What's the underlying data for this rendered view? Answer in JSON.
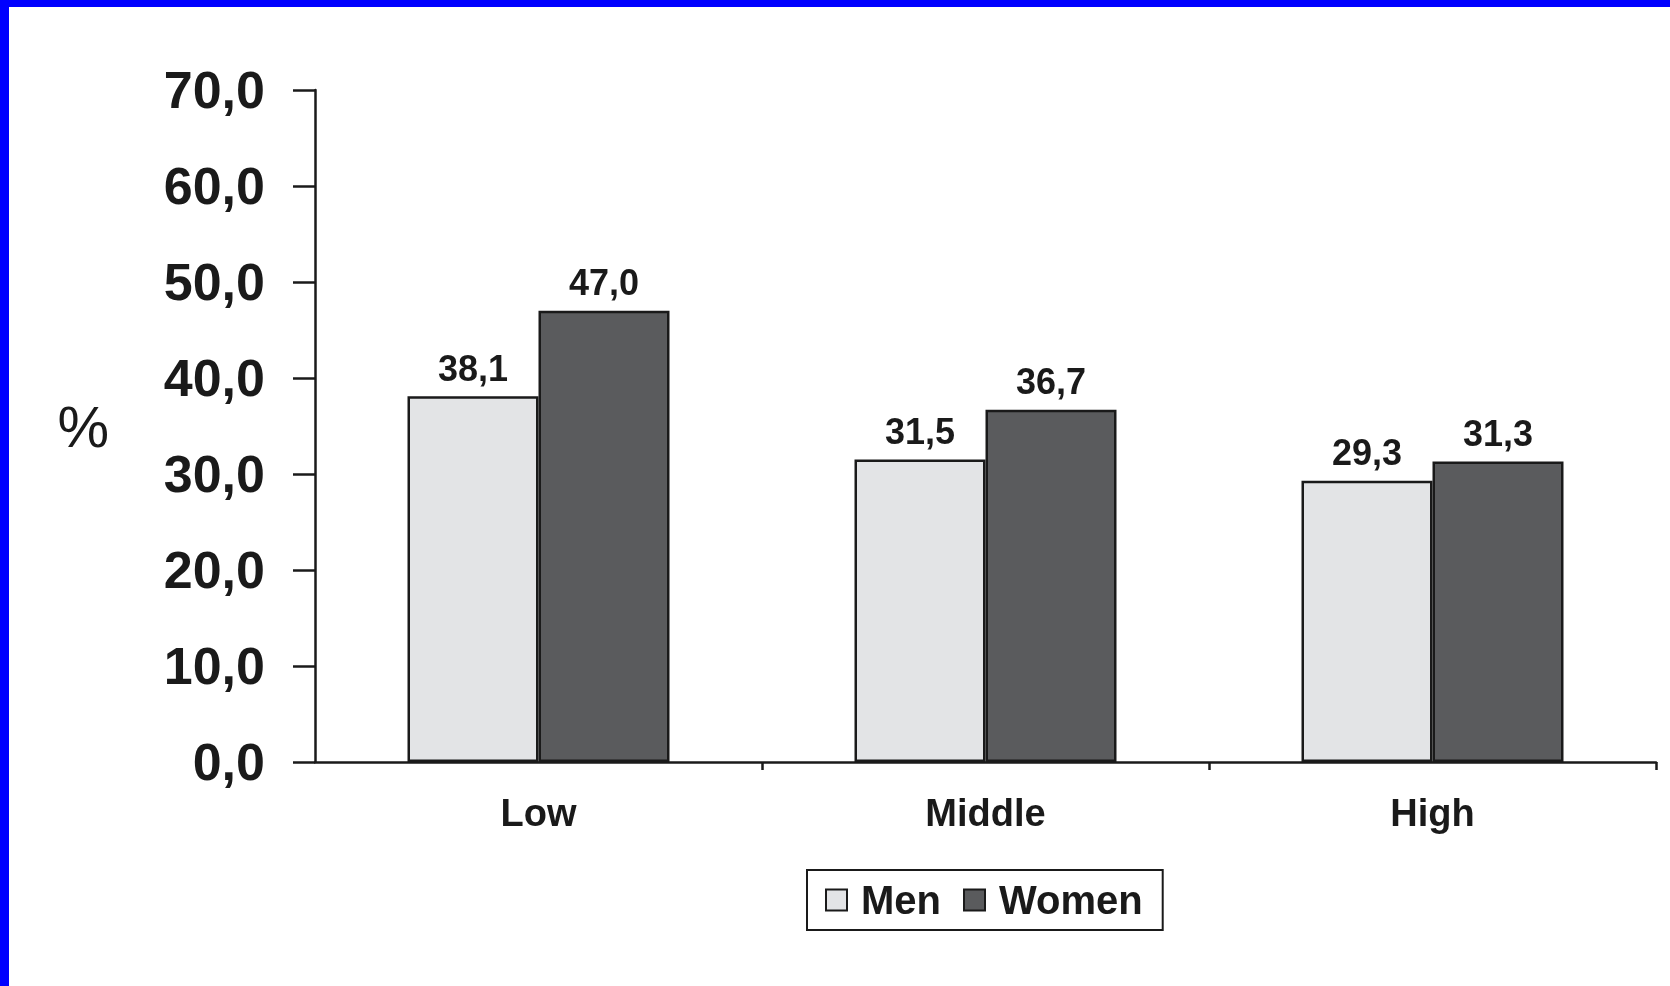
{
  "chart_data": {
    "type": "bar",
    "ylabel": "%",
    "categories": [
      "Low",
      "Middle",
      "High"
    ],
    "series": [
      {
        "name": "Men",
        "color": "#e3e4e6",
        "values": [
          38.1,
          31.5,
          29.3
        ],
        "value_labels": [
          "38,1",
          "31,5",
          "29,3"
        ]
      },
      {
        "name": "Women",
        "color": "#5a5b5d",
        "values": [
          47.0,
          36.7,
          31.3
        ],
        "value_labels": [
          "47,0",
          "36,7",
          "31,3"
        ]
      }
    ],
    "ylim": [
      0,
      70
    ],
    "yticks": [
      {
        "value": 0,
        "label": "0,0"
      },
      {
        "value": 10,
        "label": "10,0"
      },
      {
        "value": 20,
        "label": "20,0"
      },
      {
        "value": 30,
        "label": "30,0"
      },
      {
        "value": 40,
        "label": "40,0"
      },
      {
        "value": 50,
        "label": "50,0"
      },
      {
        "value": 60,
        "label": "60,0"
      },
      {
        "value": 70,
        "label": "70,0"
      }
    ],
    "grid": false,
    "legend": "bottom"
  }
}
